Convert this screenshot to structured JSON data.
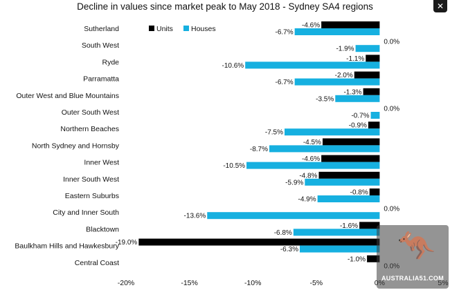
{
  "chart_data": {
    "type": "bar",
    "orientation": "horizontal",
    "title": "Decline in values since market peak to May 2018 - Sydney SA4 regions",
    "categories": [
      "Sutherland",
      "South West",
      "Ryde",
      "Parramatta",
      "Outer West and Blue Mountains",
      "Outer South West",
      "Northern Beaches",
      "North Sydney and Hornsby",
      "Inner West",
      "Inner South West",
      "Eastern Suburbs",
      "City and Inner South",
      "Blacktown",
      "Baulkham Hills and Hawkesbury",
      "Central Coast"
    ],
    "series": [
      {
        "name": "Units",
        "color": "#000000",
        "values": [
          -4.6,
          0.0,
          -1.1,
          -2.0,
          -1.3,
          0.0,
          -0.9,
          -4.5,
          -4.6,
          -4.8,
          -0.8,
          0.0,
          -1.6,
          -19.0,
          -1.0
        ],
        "labels": [
          "-4.6%",
          "0.0%",
          "-1.1%",
          "-2.0%",
          "-1.3%",
          "0.0%",
          "-0.9%",
          "-4.5%",
          "-4.6%",
          "-4.8%",
          "-0.8%",
          "0.0%",
          "-1.6%",
          "-19.0%",
          "-1.0%"
        ]
      },
      {
        "name": "Houses",
        "color": "#16b0e0",
        "values": [
          -6.7,
          -1.9,
          -10.6,
          -6.7,
          -3.5,
          -0.7,
          -7.5,
          -8.7,
          -10.5,
          -5.9,
          -4.9,
          -13.6,
          -6.8,
          -6.3,
          0.0
        ],
        "labels": [
          "-6.7%",
          "-1.9%",
          "-10.6%",
          "-6.7%",
          "-3.5%",
          "-0.7%",
          "-7.5%",
          "-8.7%",
          "-10.5%",
          "-5.9%",
          "-4.9%",
          "-13.6%",
          "-6.8%",
          "-6.3%",
          "0.0%"
        ]
      }
    ],
    "xlim": [
      -20,
      5
    ],
    "xticks": [
      -20,
      -15,
      -10,
      -5,
      0,
      5
    ],
    "xtick_labels": [
      "-20%",
      "-15%",
      "-10%",
      "-5%",
      "0%",
      "5%"
    ],
    "legend": {
      "placement": "top-left",
      "entries": [
        "Units",
        "Houses"
      ]
    },
    "grid": false
  },
  "watermark": {
    "logo_glyph": "🦘",
    "text": "AUSTRALIA51.COM"
  },
  "close_icon_glyph": "✕"
}
